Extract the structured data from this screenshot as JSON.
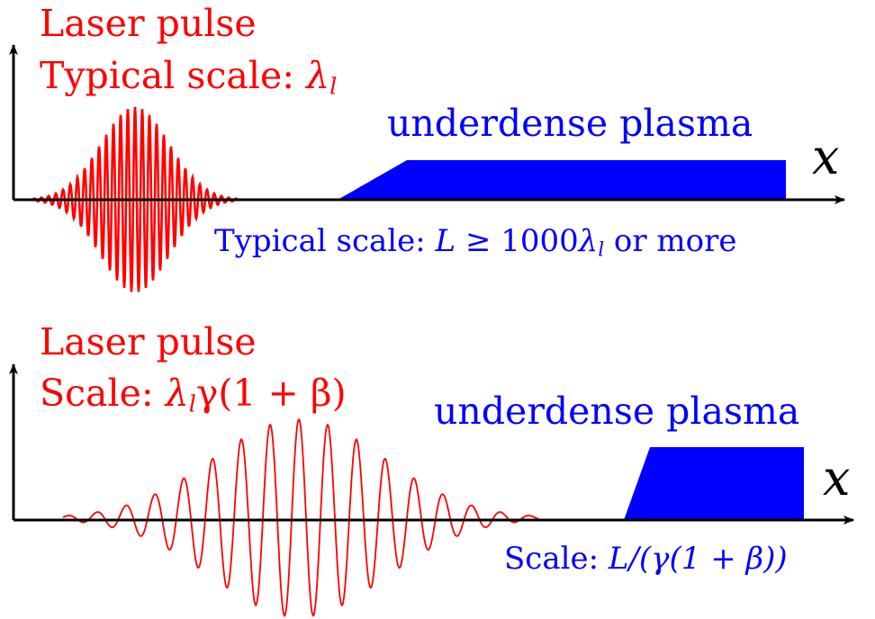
{
  "top_panel": {
    "pulse_title": "Laser pulse",
    "pulse_scale_prefix": "Typical scale:",
    "pulse_scale_symbol": "λ",
    "pulse_scale_sub": "l",
    "plasma_label": "underdense plasma",
    "axis_label": "x",
    "plasma_scale_prefix": "Typical scale:",
    "plasma_scale_L": "L",
    "plasma_scale_rel": "≥ 1000",
    "plasma_scale_symbol": "λ",
    "plasma_scale_sub": "l",
    "plasma_scale_suffix": "or more"
  },
  "bottom_panel": {
    "pulse_title": "Laser pulse",
    "pulse_scale_prefix": "Scale:",
    "pulse_scale_symbol": "λ",
    "pulse_scale_sub": "l",
    "pulse_scale_expr": "γ(1 + β)",
    "plasma_label": "underdense plasma",
    "axis_label": "x",
    "plasma_scale_prefix": "Scale:",
    "plasma_scale_expr": "L/(γ(1 + β))"
  },
  "colors": {
    "laser": "#ff0000",
    "plasma": "#0000ff",
    "axis": "#000000"
  }
}
